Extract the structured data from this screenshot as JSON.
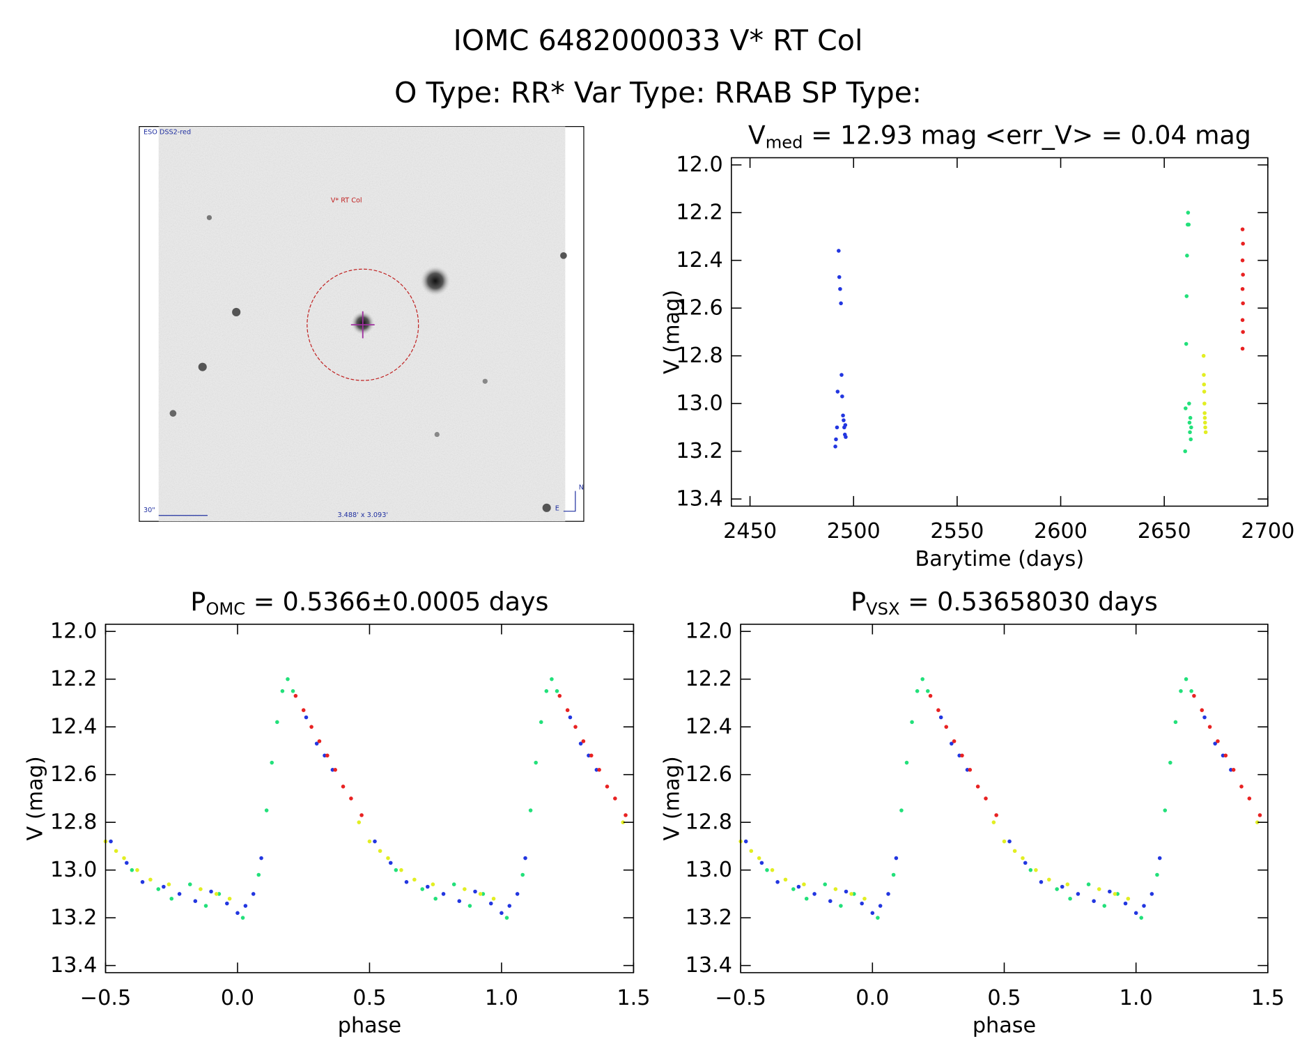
{
  "title": "IOMC 6482000033   V* RT Col",
  "subtitle": "O Type: RR*  Var Type: RRAB  SP Type:",
  "image": {
    "survey": "ESO DSS2-red",
    "target": "V* RT Col",
    "scale": "30\"",
    "size": "3.488' x 3.093'",
    "north": "N",
    "east": "E"
  },
  "chart_data": [
    {
      "type": "scatter",
      "title": [
        "V",
        "med",
        " = 12.93 mag <err_V> = 0.04 mag"
      ],
      "x_label": "Barytime (days)",
      "y_label": "V (mag)",
      "xlim": [
        2441,
        2700
      ],
      "ylim": [
        13.43,
        11.97
      ],
      "xticks": [
        2450,
        2500,
        2550,
        2600,
        2650,
        2700
      ],
      "yticks": [
        {
          "value": 12.0,
          "label": "12.0"
        },
        12.2,
        12.4,
        12.6,
        12.8,
        {
          "value": 13.0,
          "label": "13.0"
        },
        13.2,
        13.4
      ],
      "series": [
        {
          "color": "#2236e0",
          "x": [
            2491.2,
            2491.5,
            2492,
            2492.3,
            2492.8,
            2493.1,
            2493.5,
            2493.9,
            2494.2,
            2494.5,
            2494.9,
            2495.2,
            2495.5,
            2495.8,
            2496,
            2496.2
          ],
          "values": [
            13.18,
            13.15,
            13.1,
            12.95,
            12.36,
            12.47,
            12.52,
            12.58,
            12.88,
            12.97,
            13.05,
            13.07,
            13.1,
            13.13,
            13.09,
            13.14
          ]
        },
        {
          "color": "#22e07a",
          "x": [
            2660.1,
            2660.3,
            2660.6,
            2660.8,
            2661,
            2661.3,
            2661.5,
            2661.8,
            2662,
            2662.2,
            2662.4,
            2662.6,
            2662.8,
            2663
          ],
          "values": [
            13.2,
            13.02,
            12.75,
            12.55,
            12.38,
            12.25,
            12.2,
            12.25,
            13.0,
            13.08,
            13.12,
            13.06,
            13.15,
            13.1
          ]
        },
        {
          "color": "#e2ee22",
          "x": [
            2669,
            2669.1,
            2669.2,
            2669.3,
            2669.4,
            2669.5,
            2669.6,
            2669.7,
            2669.8,
            2670
          ],
          "values": [
            12.8,
            12.88,
            12.92,
            12.95,
            13.0,
            13.04,
            13.06,
            13.08,
            13.1,
            13.12
          ]
        },
        {
          "color": "#e82222",
          "x": [
            2687.8,
            2688,
            2687.8,
            2688,
            2687.8,
            2688,
            2687.8,
            2688,
            2687.8
          ],
          "values": [
            12.27,
            12.33,
            12.4,
            12.46,
            12.52,
            12.58,
            12.65,
            12.7,
            12.77
          ]
        }
      ]
    },
    {
      "type": "scatter",
      "title": [
        "P",
        "OMC",
        " = 0.5366±0.0005 days"
      ],
      "x_label": "phase",
      "y_label": "V (mag)",
      "xlim": [
        -0.5,
        1.5
      ],
      "ylim": [
        13.43,
        11.97
      ],
      "xticks": [
        {
          "value": -0.5,
          "label": "−0.5"
        },
        {
          "value": 0.0,
          "label": "0.0"
        },
        0.5,
        {
          "value": 1.0,
          "label": "1.0"
        },
        1.5
      ],
      "yticks": [
        {
          "value": 12.0,
          "label": "12.0"
        },
        12.2,
        12.4,
        12.6,
        12.8,
        {
          "value": 13.0,
          "label": "13.0"
        },
        13.2,
        13.4
      ],
      "series": [
        {
          "color": "#2236e0",
          "x": [
            0,
            0.03,
            0.06,
            0.09,
            0.26,
            0.3,
            0.33,
            0.36,
            0.52,
            0.58,
            0.64,
            0.72,
            0.78,
            0.84,
            0.9,
            0.96,
            1,
            1.03,
            1.06,
            1.09,
            1.26,
            1.3,
            1.33,
            1.36,
            -0.48,
            -0.42,
            -0.36,
            -0.28,
            -0.22,
            -0.16,
            -0.1,
            -0.04
          ],
          "values": [
            13.18,
            13.15,
            13.1,
            12.95,
            12.36,
            12.47,
            12.52,
            12.58,
            12.88,
            12.97,
            13.05,
            13.07,
            13.1,
            13.13,
            13.09,
            13.14,
            13.18,
            13.15,
            13.1,
            12.95,
            12.36,
            12.47,
            12.52,
            12.58,
            12.88,
            12.97,
            13.05,
            13.07,
            13.1,
            13.13,
            13.09,
            13.14
          ]
        },
        {
          "color": "#22e07a",
          "x": [
            0.02,
            0.08,
            0.11,
            0.13,
            0.15,
            0.17,
            0.19,
            0.21,
            0.6,
            0.7,
            0.75,
            0.82,
            0.88,
            0.93,
            1.02,
            1.08,
            1.11,
            1.13,
            1.15,
            1.17,
            1.19,
            1.21,
            -0.4,
            -0.3,
            -0.25,
            -0.18,
            -0.12,
            -0.07
          ],
          "values": [
            13.2,
            13.02,
            12.75,
            12.55,
            12.38,
            12.25,
            12.2,
            12.25,
            13.0,
            13.08,
            13.12,
            13.06,
            13.15,
            13.1,
            13.2,
            13.02,
            12.75,
            12.55,
            12.38,
            12.25,
            12.2,
            12.25,
            13.0,
            13.08,
            13.12,
            13.06,
            13.15,
            13.1
          ]
        },
        {
          "color": "#e2ee22",
          "x": [
            0.46,
            0.5,
            0.54,
            0.57,
            0.62,
            0.67,
            0.74,
            0.86,
            0.92,
            0.97,
            1.46,
            -0.5,
            -0.46,
            -0.43,
            -0.38,
            -0.33,
            -0.26,
            -0.14,
            -0.08,
            -0.03
          ],
          "values": [
            12.8,
            12.88,
            12.92,
            12.95,
            13.0,
            13.04,
            13.06,
            13.08,
            13.1,
            13.12,
            12.8,
            12.88,
            12.92,
            12.95,
            13.0,
            13.04,
            13.06,
            13.08,
            13.1,
            13.12
          ]
        },
        {
          "color": "#e82222",
          "x": [
            0.22,
            0.25,
            0.28,
            0.31,
            0.34,
            0.37,
            0.4,
            0.43,
            0.47,
            1.22,
            1.25,
            1.28,
            1.31,
            1.34,
            1.37,
            1.4,
            1.43,
            1.47
          ],
          "values": [
            12.27,
            12.33,
            12.4,
            12.46,
            12.52,
            12.58,
            12.65,
            12.7,
            12.77,
            12.27,
            12.33,
            12.4,
            12.46,
            12.52,
            12.58,
            12.65,
            12.7,
            12.77
          ]
        }
      ]
    },
    {
      "type": "scatter",
      "title": [
        "P",
        "VSX",
        " = 0.53658030 days"
      ],
      "x_label": "phase",
      "y_label": "V (mag)",
      "xlim": [
        -0.5,
        1.5
      ],
      "ylim": [
        13.43,
        11.97
      ],
      "xticks": [
        {
          "value": -0.5,
          "label": "−0.5"
        },
        {
          "value": 0.0,
          "label": "0.0"
        },
        0.5,
        {
          "value": 1.0,
          "label": "1.0"
        },
        1.5
      ],
      "yticks": [
        {
          "value": 12.0,
          "label": "12.0"
        },
        12.2,
        12.4,
        12.6,
        12.8,
        {
          "value": 13.0,
          "label": "13.0"
        },
        13.2,
        13.4
      ],
      "series": [
        {
          "color": "#2236e0",
          "x": [
            0,
            0.03,
            0.06,
            0.09,
            0.26,
            0.3,
            0.33,
            0.36,
            0.52,
            0.58,
            0.64,
            0.72,
            0.78,
            0.84,
            0.9,
            0.96,
            1,
            1.03,
            1.06,
            1.09,
            1.26,
            1.3,
            1.33,
            1.36,
            -0.48,
            -0.42,
            -0.36,
            -0.28,
            -0.22,
            -0.16,
            -0.1,
            -0.04
          ],
          "values": [
            13.18,
            13.15,
            13.1,
            12.95,
            12.36,
            12.47,
            12.52,
            12.58,
            12.88,
            12.97,
            13.05,
            13.07,
            13.1,
            13.13,
            13.09,
            13.14,
            13.18,
            13.15,
            13.1,
            12.95,
            12.36,
            12.47,
            12.52,
            12.58,
            12.88,
            12.97,
            13.05,
            13.07,
            13.1,
            13.13,
            13.09,
            13.14
          ]
        },
        {
          "color": "#22e07a",
          "x": [
            0.02,
            0.08,
            0.11,
            0.13,
            0.15,
            0.17,
            0.19,
            0.21,
            0.6,
            0.7,
            0.75,
            0.82,
            0.88,
            0.93,
            1.02,
            1.08,
            1.11,
            1.13,
            1.15,
            1.17,
            1.19,
            1.21,
            -0.4,
            -0.3,
            -0.25,
            -0.18,
            -0.12,
            -0.07
          ],
          "values": [
            13.2,
            13.02,
            12.75,
            12.55,
            12.38,
            12.25,
            12.2,
            12.25,
            13.0,
            13.08,
            13.12,
            13.06,
            13.15,
            13.1,
            13.2,
            13.02,
            12.75,
            12.55,
            12.38,
            12.25,
            12.2,
            12.25,
            13.0,
            13.08,
            13.12,
            13.06,
            13.15,
            13.1
          ]
        },
        {
          "color": "#e2ee22",
          "x": [
            0.46,
            0.5,
            0.54,
            0.57,
            0.62,
            0.67,
            0.74,
            0.86,
            0.92,
            0.97,
            1.46,
            -0.5,
            -0.46,
            -0.43,
            -0.38,
            -0.33,
            -0.26,
            -0.14,
            -0.08,
            -0.03
          ],
          "values": [
            12.8,
            12.88,
            12.92,
            12.95,
            13.0,
            13.04,
            13.06,
            13.08,
            13.1,
            13.12,
            12.8,
            12.88,
            12.92,
            12.95,
            13.0,
            13.04,
            13.06,
            13.08,
            13.1,
            13.12
          ]
        },
        {
          "color": "#e82222",
          "x": [
            0.22,
            0.25,
            0.28,
            0.31,
            0.34,
            0.37,
            0.4,
            0.43,
            0.47,
            1.22,
            1.25,
            1.28,
            1.31,
            1.34,
            1.37,
            1.4,
            1.43,
            1.47
          ],
          "values": [
            12.27,
            12.33,
            12.4,
            12.46,
            12.52,
            12.58,
            12.65,
            12.7,
            12.77,
            12.27,
            12.33,
            12.4,
            12.46,
            12.52,
            12.58,
            12.65,
            12.7,
            12.77
          ]
        }
      ]
    }
  ]
}
